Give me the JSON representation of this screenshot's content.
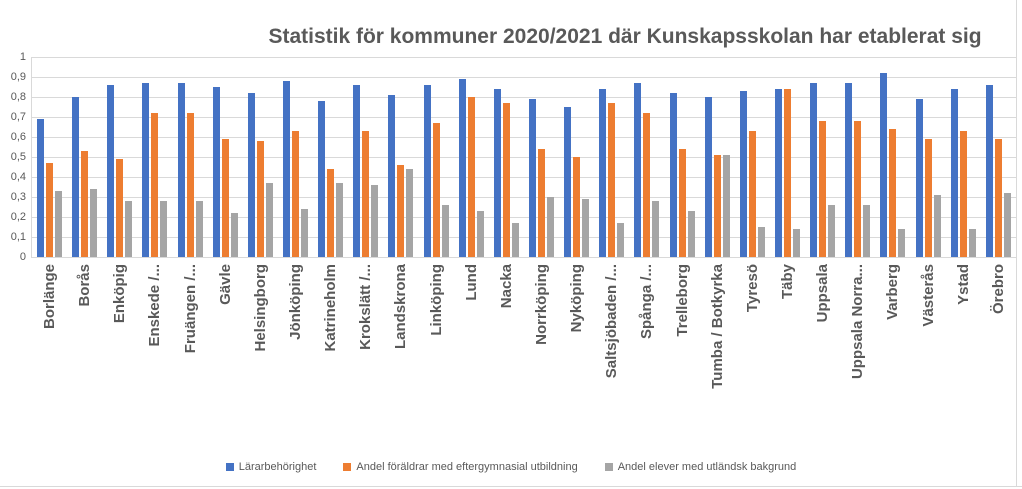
{
  "colors": {
    "grid": "#D9D9D9",
    "text": "#595959",
    "series_blue": "#4472C4",
    "series_orange": "#ED7D31",
    "series_gray": "#A5A5A5"
  },
  "chart_data": {
    "type": "bar",
    "title": "Statistik för kommuner 2020/2021 där Kunskapsskolan har etablerat sig",
    "xlabel": "",
    "ylabel": "",
    "ylim": [
      0,
      1
    ],
    "ytick_labels": [
      "1",
      "0,9",
      "0,8",
      "0,7",
      "0,6",
      "0,5",
      "0,4",
      "0,3",
      "0,2",
      "0,1",
      "0"
    ],
    "grid": true,
    "legend_position": "bottom",
    "categories": [
      "Borlänge",
      "Borås",
      "Enköpig",
      "Enskede /...",
      "Fruängen /...",
      "Gävle",
      "Helsingborg",
      "Jönköping",
      "Katrineholm",
      "Krokslätt /...",
      "Landskrona",
      "Linköping",
      "Lund",
      "Nacka",
      "Norrköping",
      "Nyköping",
      "Saltsjöbaden /...",
      "Spånga /...",
      "Trelleborg",
      "Tumba / Botkyrka",
      "Tyresö",
      "Täby",
      "Uppsala",
      "Uppsala Norra...",
      "Varberg",
      "Västerås",
      "Ystad",
      "Örebro"
    ],
    "series": [
      {
        "key": "lararbehorighet",
        "name": "Lärarbehörighet",
        "color": "#4472C4",
        "values": [
          0.69,
          0.8,
          0.86,
          0.87,
          0.87,
          0.85,
          0.82,
          0.88,
          0.78,
          0.86,
          0.81,
          0.86,
          0.89,
          0.84,
          0.79,
          0.75,
          0.84,
          0.87,
          0.82,
          0.8,
          0.83,
          0.84,
          0.87,
          0.87,
          0.92,
          0.79,
          0.84,
          0.86
        ]
      },
      {
        "key": "andel-foraldrar-eftergymnasial",
        "name": "Andel föräldrar med eftergymnasial utbildning",
        "color": "#ED7D31",
        "values": [
          0.47,
          0.53,
          0.49,
          0.72,
          0.72,
          0.59,
          0.58,
          0.63,
          0.44,
          0.63,
          0.46,
          0.67,
          0.8,
          0.77,
          0.54,
          0.5,
          0.77,
          0.72,
          0.54,
          0.51,
          0.63,
          0.84,
          0.68,
          0.68,
          0.64,
          0.59,
          0.63,
          0.59
        ]
      },
      {
        "key": "andel-elever-utlandsk-bakgrund",
        "name": "Andel elever med utländsk bakgrund",
        "color": "#A5A5A5",
        "values": [
          0.33,
          0.34,
          0.28,
          0.28,
          0.28,
          0.22,
          0.37,
          0.24,
          0.37,
          0.36,
          0.44,
          0.26,
          0.23,
          0.17,
          0.3,
          0.29,
          0.17,
          0.28,
          0.23,
          0.51,
          0.15,
          0.14,
          0.26,
          0.26,
          0.14,
          0.31,
          0.14,
          0.32
        ]
      }
    ]
  }
}
